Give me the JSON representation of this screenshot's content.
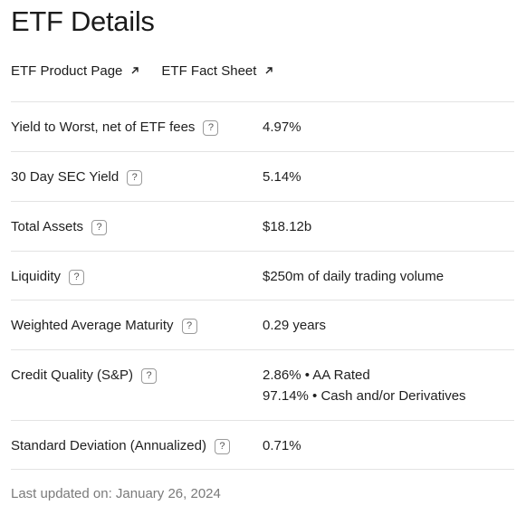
{
  "page": {
    "title": "ETF Details"
  },
  "links": [
    {
      "label": "ETF Product Page",
      "icon": "external-arrow-icon"
    },
    {
      "label": "ETF Fact Sheet",
      "icon": "external-arrow-icon"
    }
  ],
  "details": {
    "yield_to_worst": {
      "label": "Yield to Worst, net of ETF fees",
      "value": "4.97%"
    },
    "sec_yield": {
      "label": "30 Day SEC Yield",
      "value": "5.14%"
    },
    "total_assets": {
      "label": "Total Assets",
      "value": "$18.12b"
    },
    "liquidity": {
      "label": "Liquidity",
      "value": "$250m of daily trading volume"
    },
    "wam": {
      "label": "Weighted Average Maturity",
      "value": "0.29 years"
    },
    "credit_quality": {
      "label": "Credit Quality (S&P)",
      "values": [
        "2.86% • AA Rated",
        "97.14% • Cash and/or Derivatives"
      ]
    },
    "std_dev": {
      "label": "Standard Deviation (Annualized)",
      "value": "0.71%"
    }
  },
  "help_glyph": "?",
  "footer": {
    "last_updated": "Last updated on: January 26, 2024"
  }
}
